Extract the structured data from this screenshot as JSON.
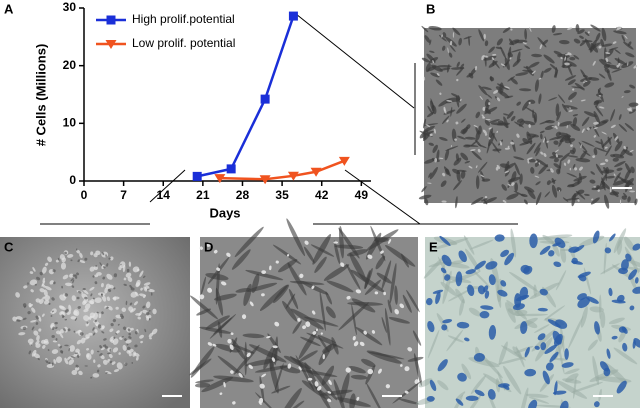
{
  "panel_labels": [
    "A",
    "B",
    "C",
    "D",
    "E"
  ],
  "chart_data": {
    "type": "line",
    "ylabel": "# Cells (Millions)",
    "xlabel": "Days",
    "xlim": [
      0,
      50
    ],
    "xticks": [
      0,
      7,
      14,
      21,
      28,
      35,
      42,
      49
    ],
    "ylim": [
      0,
      30
    ],
    "yticks": [
      0,
      10,
      20,
      30
    ],
    "series": [
      {
        "name": "High prolif.potential",
        "color": "#1a2fd8",
        "marker": "square",
        "x": [
          20,
          26,
          32,
          37
        ],
        "values": [
          0.8,
          2.1,
          14.2,
          28.6
        ]
      },
      {
        "name": "Low prolif. potential",
        "color": "#f0531f",
        "marker": "triangle",
        "x": [
          24,
          32,
          37,
          41,
          46
        ],
        "values": [
          0.5,
          0.3,
          0.9,
          1.6,
          3.5
        ]
      }
    ]
  }
}
